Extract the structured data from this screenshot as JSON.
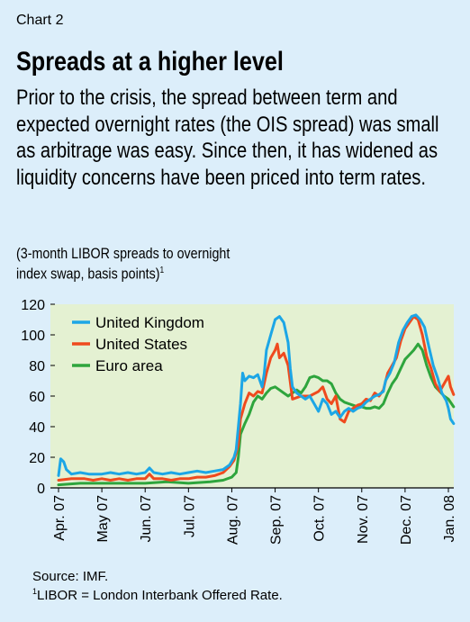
{
  "header": {
    "chart_number": "Chart 2",
    "title": "Spreads at a higher level",
    "subtitle": "Prior to the crisis, the spread between term and expected overnight rates (the OIS spread) was small as arbitrage was easy. Since then, it has widened as liquidity concerns have been priced into term rates.",
    "units_line1": "(3-month LIBOR spreads to overnight",
    "units_line2": "index swap, basis points)",
    "units_sup": "1"
  },
  "footer": {
    "source": "Source: IMF.",
    "footnote_sup": "1",
    "footnote": "LIBOR = London Interbank Offered Rate."
  },
  "colors": {
    "page_background": "#dceefa",
    "plot_background": "#e4f1d2",
    "united_kingdom": "#1ca6e6",
    "united_states": "#ef4a1e",
    "euro_area": "#2ea53d"
  },
  "chart_data": {
    "type": "line",
    "ylim": [
      0,
      120
    ],
    "yticks": [
      0,
      20,
      40,
      60,
      80,
      100,
      120
    ],
    "x_ticks": [
      "Apr. 07",
      "May 07",
      "Jun. 07",
      "Jul. 07",
      "Aug. 07",
      "Sep. 07",
      "Oct. 07",
      "Nov. 07",
      "Dec. 07",
      "Jan. 08"
    ],
    "legend_position": "top-left",
    "grid": false,
    "series": [
      {
        "name": "United Kingdom",
        "color": "#1ca6e6",
        "points": [
          [
            0,
            8
          ],
          [
            0.05,
            19
          ],
          [
            0.12,
            17
          ],
          [
            0.18,
            12
          ],
          [
            0.3,
            9
          ],
          [
            0.5,
            10
          ],
          [
            0.7,
            9
          ],
          [
            1,
            9
          ],
          [
            1.2,
            10
          ],
          [
            1.4,
            9
          ],
          [
            1.6,
            10
          ],
          [
            1.8,
            9
          ],
          [
            2,
            10
          ],
          [
            2.1,
            13
          ],
          [
            2.2,
            10
          ],
          [
            2.4,
            9
          ],
          [
            2.6,
            10
          ],
          [
            2.8,
            9
          ],
          [
            3,
            10
          ],
          [
            3.2,
            11
          ],
          [
            3.4,
            10
          ],
          [
            3.6,
            11
          ],
          [
            3.8,
            12
          ],
          [
            3.95,
            15
          ],
          [
            4.05,
            20
          ],
          [
            4.1,
            25
          ],
          [
            4.2,
            55
          ],
          [
            4.25,
            75
          ],
          [
            4.3,
            70
          ],
          [
            4.4,
            73
          ],
          [
            4.5,
            72
          ],
          [
            4.6,
            74
          ],
          [
            4.7,
            66
          ],
          [
            4.75,
            75
          ],
          [
            4.8,
            90
          ],
          [
            4.9,
            100
          ],
          [
            5,
            110
          ],
          [
            5.1,
            112
          ],
          [
            5.2,
            108
          ],
          [
            5.3,
            95
          ],
          [
            5.35,
            78
          ],
          [
            5.4,
            66
          ],
          [
            5.5,
            62
          ],
          [
            5.7,
            58
          ],
          [
            5.8,
            60
          ],
          [
            5.9,
            55
          ],
          [
            6,
            50
          ],
          [
            6.1,
            58
          ],
          [
            6.2,
            55
          ],
          [
            6.3,
            48
          ],
          [
            6.4,
            50
          ],
          [
            6.5,
            46
          ],
          [
            6.6,
            50
          ],
          [
            6.7,
            52
          ],
          [
            6.8,
            50
          ],
          [
            6.9,
            52
          ],
          [
            7,
            53
          ],
          [
            7.1,
            56
          ],
          [
            7.2,
            58
          ],
          [
            7.3,
            60
          ],
          [
            7.4,
            61
          ],
          [
            7.5,
            63
          ],
          [
            7.55,
            70
          ],
          [
            7.65,
            75
          ],
          [
            7.75,
            82
          ],
          [
            7.85,
            95
          ],
          [
            7.95,
            103
          ],
          [
            8.05,
            108
          ],
          [
            8.15,
            112
          ],
          [
            8.25,
            113
          ],
          [
            8.35,
            110
          ],
          [
            8.45,
            105
          ],
          [
            8.55,
            92
          ],
          [
            8.65,
            80
          ],
          [
            8.75,
            72
          ],
          [
            8.85,
            62
          ],
          [
            8.95,
            57
          ],
          [
            9,
            52
          ],
          [
            9.05,
            45
          ],
          [
            9.12,
            42
          ]
        ]
      },
      {
        "name": "United States",
        "color": "#ef4a1e",
        "points": [
          [
            0,
            5
          ],
          [
            0.3,
            6
          ],
          [
            0.6,
            6
          ],
          [
            0.8,
            5
          ],
          [
            1,
            6
          ],
          [
            1.2,
            5
          ],
          [
            1.4,
            6
          ],
          [
            1.6,
            5
          ],
          [
            1.8,
            6
          ],
          [
            2,
            6
          ],
          [
            2.1,
            9
          ],
          [
            2.2,
            6
          ],
          [
            2.4,
            6
          ],
          [
            2.6,
            5
          ],
          [
            2.8,
            6
          ],
          [
            3,
            6
          ],
          [
            3.2,
            7
          ],
          [
            3.4,
            7
          ],
          [
            3.6,
            8
          ],
          [
            3.8,
            10
          ],
          [
            3.95,
            14
          ],
          [
            4.05,
            18
          ],
          [
            4.15,
            28
          ],
          [
            4.2,
            45
          ],
          [
            4.3,
            55
          ],
          [
            4.4,
            62
          ],
          [
            4.5,
            60
          ],
          [
            4.6,
            63
          ],
          [
            4.7,
            62
          ],
          [
            4.8,
            75
          ],
          [
            4.9,
            85
          ],
          [
            5,
            90
          ],
          [
            5.05,
            94
          ],
          [
            5.1,
            85
          ],
          [
            5.2,
            88
          ],
          [
            5.3,
            80
          ],
          [
            5.4,
            58
          ],
          [
            5.6,
            60
          ],
          [
            5.8,
            60
          ],
          [
            6,
            63
          ],
          [
            6.1,
            66
          ],
          [
            6.2,
            58
          ],
          [
            6.3,
            55
          ],
          [
            6.4,
            60
          ],
          [
            6.5,
            45
          ],
          [
            6.6,
            43
          ],
          [
            6.7,
            50
          ],
          [
            6.8,
            52
          ],
          [
            6.9,
            54
          ],
          [
            7,
            55
          ],
          [
            7.1,
            58
          ],
          [
            7.2,
            57
          ],
          [
            7.3,
            62
          ],
          [
            7.4,
            60
          ],
          [
            7.5,
            64
          ],
          [
            7.6,
            75
          ],
          [
            7.7,
            80
          ],
          [
            7.8,
            85
          ],
          [
            7.9,
            96
          ],
          [
            8,
            104
          ],
          [
            8.1,
            108
          ],
          [
            8.2,
            112
          ],
          [
            8.3,
            110
          ],
          [
            8.4,
            100
          ],
          [
            8.5,
            86
          ],
          [
            8.6,
            78
          ],
          [
            8.7,
            68
          ],
          [
            8.8,
            63
          ],
          [
            8.9,
            68
          ],
          [
            9,
            73
          ],
          [
            9.05,
            66
          ],
          [
            9.12,
            61
          ]
        ]
      },
      {
        "name": "Euro area",
        "color": "#2ea53d",
        "points": [
          [
            0,
            2
          ],
          [
            0.5,
            3
          ],
          [
            1,
            3
          ],
          [
            1.5,
            3
          ],
          [
            2,
            3
          ],
          [
            2.5,
            4
          ],
          [
            3,
            3
          ],
          [
            3.5,
            4
          ],
          [
            3.8,
            5
          ],
          [
            4,
            7
          ],
          [
            4.1,
            10
          ],
          [
            4.15,
            20
          ],
          [
            4.2,
            35
          ],
          [
            4.3,
            42
          ],
          [
            4.4,
            48
          ],
          [
            4.5,
            56
          ],
          [
            4.6,
            60
          ],
          [
            4.7,
            58
          ],
          [
            4.8,
            62
          ],
          [
            4.9,
            65
          ],
          [
            5,
            66
          ],
          [
            5.1,
            64
          ],
          [
            5.2,
            62
          ],
          [
            5.3,
            60
          ],
          [
            5.4,
            62
          ],
          [
            5.5,
            64
          ],
          [
            5.6,
            62
          ],
          [
            5.7,
            66
          ],
          [
            5.8,
            72
          ],
          [
            5.9,
            73
          ],
          [
            6,
            72
          ],
          [
            6.1,
            70
          ],
          [
            6.2,
            70
          ],
          [
            6.3,
            68
          ],
          [
            6.4,
            62
          ],
          [
            6.5,
            58
          ],
          [
            6.6,
            56
          ],
          [
            6.7,
            55
          ],
          [
            6.8,
            54
          ],
          [
            6.9,
            53
          ],
          [
            7,
            53
          ],
          [
            7.1,
            52
          ],
          [
            7.2,
            52
          ],
          [
            7.3,
            53
          ],
          [
            7.4,
            52
          ],
          [
            7.5,
            55
          ],
          [
            7.6,
            62
          ],
          [
            7.7,
            68
          ],
          [
            7.8,
            72
          ],
          [
            7.9,
            78
          ],
          [
            8,
            84
          ],
          [
            8.1,
            87
          ],
          [
            8.2,
            90
          ],
          [
            8.3,
            94
          ],
          [
            8.4,
            90
          ],
          [
            8.5,
            80
          ],
          [
            8.6,
            72
          ],
          [
            8.7,
            66
          ],
          [
            8.8,
            63
          ],
          [
            8.9,
            60
          ],
          [
            9,
            58
          ],
          [
            9.12,
            53
          ]
        ]
      }
    ]
  }
}
